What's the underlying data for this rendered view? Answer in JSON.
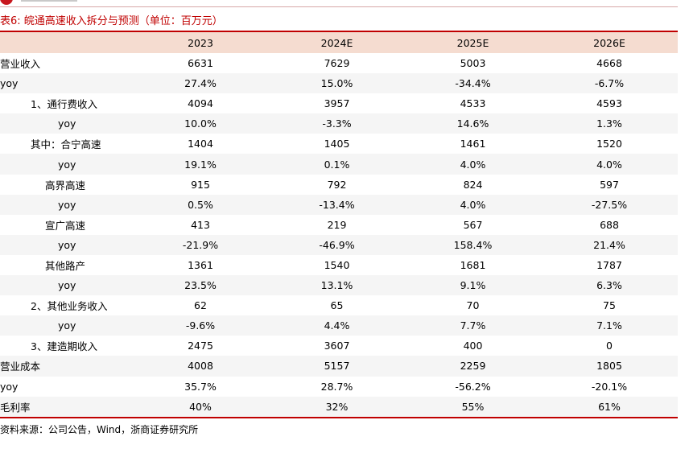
{
  "title": "表6:  皖通高速收入拆分与预测（单位：百万元）",
  "columns": [
    "",
    "2023",
    "2024E",
    "2025E",
    "2026E"
  ],
  "rows": [
    {
      "label": "营业收入",
      "indent": 0,
      "values": [
        "6631",
        "7629",
        "5003",
        "4668"
      ]
    },
    {
      "label": "yoy",
      "indent": 0,
      "values": [
        "27.4%",
        "15.0%",
        "-34.4%",
        "-6.7%"
      ]
    },
    {
      "label": "1、通行费收入",
      "indent": 1,
      "values": [
        "4094",
        "3957",
        "4533",
        "4593"
      ]
    },
    {
      "label": "yoy",
      "indent": 2,
      "values": [
        "10.0%",
        "-3.3%",
        "14.6%",
        "1.3%"
      ]
    },
    {
      "label": "其中：合宁高速",
      "indent": 1,
      "values": [
        "1404",
        "1405",
        "1461",
        "1520"
      ]
    },
    {
      "label": "yoy",
      "indent": 2,
      "values": [
        "19.1%",
        "0.1%",
        "4.0%",
        "4.0%"
      ]
    },
    {
      "label": "高界高速",
      "indent": 3,
      "values": [
        "915",
        "792",
        "824",
        "597"
      ]
    },
    {
      "label": "yoy",
      "indent": 2,
      "values": [
        "0.5%",
        "-13.4%",
        "4.0%",
        "-27.5%"
      ]
    },
    {
      "label": "宣广高速",
      "indent": 3,
      "values": [
        "413",
        "219",
        "567",
        "688"
      ]
    },
    {
      "label": "yoy",
      "indent": 2,
      "values": [
        "-21.9%",
        "-46.9%",
        "158.4%",
        "21.4%"
      ]
    },
    {
      "label": "其他路产",
      "indent": 3,
      "values": [
        "1361",
        "1540",
        "1681",
        "1787"
      ]
    },
    {
      "label": "yoy",
      "indent": 2,
      "values": [
        "23.5%",
        "13.1%",
        "9.1%",
        "6.3%"
      ]
    },
    {
      "label": "2、其他业务收入",
      "indent": 1,
      "values": [
        "62",
        "65",
        "70",
        "75"
      ]
    },
    {
      "label": "yoy",
      "indent": 2,
      "values": [
        "-9.6%",
        "4.4%",
        "7.7%",
        "7.1%"
      ]
    },
    {
      "label": "3、建造期收入",
      "indent": 1,
      "values": [
        "2475",
        "3607",
        "400",
        "0"
      ]
    },
    {
      "label": "营业成本",
      "indent": 0,
      "values": [
        "4008",
        "5157",
        "2259",
        "1805"
      ]
    },
    {
      "label": "yoy",
      "indent": 0,
      "values": [
        "35.7%",
        "28.7%",
        "-56.2%",
        "-20.1%"
      ]
    },
    {
      "label": "毛利率",
      "indent": 0,
      "values": [
        "40%",
        "32%",
        "55%",
        "61%"
      ]
    }
  ],
  "source": "资料来源：公司公告，Wind，浙商证券研究所",
  "colors": {
    "accent": "#c00000",
    "header_bg": "#f5dcd0",
    "stripe_bg": "#f5f5f5"
  }
}
